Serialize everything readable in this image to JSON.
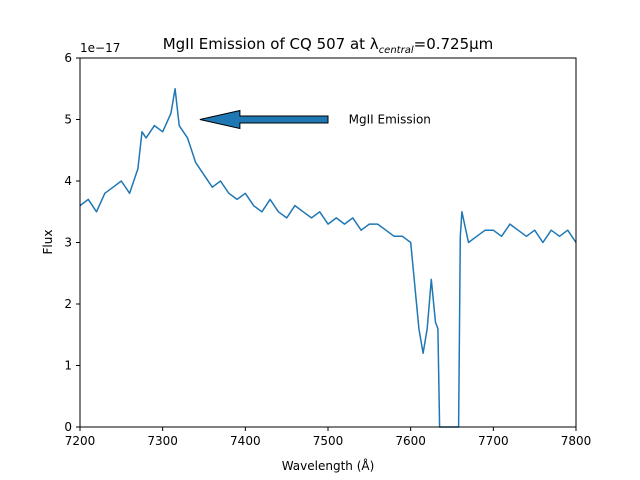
{
  "chart_data": {
    "type": "line",
    "title": "MgII Emission of CQ 507 at λ",
    "title_sub": "central",
    "title_tail": "=0.725μm",
    "xlabel": "Wavelength (Å)",
    "ylabel": "Flux",
    "y_offset_label": "1e−17",
    "xlim": [
      7200,
      7800
    ],
    "ylim": [
      0,
      6
    ],
    "xticks": [
      7200,
      7300,
      7400,
      7500,
      7600,
      7700,
      7800
    ],
    "yticks": [
      0,
      1,
      2,
      3,
      4,
      5,
      6
    ],
    "grid": false,
    "series_color": "#1f77b4",
    "annotation": {
      "text": "MgII Emission",
      "arrow_tip": {
        "x": 7345,
        "y": 5.0
      },
      "arrow_tail": {
        "x": 7500,
        "y": 5.0
      },
      "text_anchor": {
        "x": 7525,
        "y": 5.0
      }
    },
    "series": [
      {
        "x": [
          7200,
          7210,
          7220,
          7230,
          7240,
          7250,
          7260,
          7270,
          7275,
          7280,
          7290,
          7300,
          7310,
          7315,
          7320,
          7330,
          7340,
          7350,
          7360,
          7370,
          7380,
          7390,
          7400,
          7410,
          7420,
          7430,
          7440,
          7450,
          7460,
          7470,
          7480,
          7490,
          7500,
          7510,
          7520,
          7530,
          7540,
          7550,
          7560,
          7570,
          7580,
          7590,
          7600,
          7605,
          7610,
          7615,
          7620,
          7625,
          7630,
          7633,
          7635,
          7640,
          7650,
          7658,
          7660,
          7662,
          7670,
          7680,
          7690,
          7700,
          7710,
          7720,
          7730,
          7740,
          7750,
          7760,
          7770,
          7780,
          7790,
          7800
        ],
        "y": [
          3.6,
          3.7,
          3.5,
          3.8,
          3.9,
          4.0,
          3.8,
          4.2,
          4.8,
          4.7,
          4.9,
          4.8,
          5.1,
          5.5,
          4.9,
          4.7,
          4.3,
          4.1,
          3.9,
          4.0,
          3.8,
          3.7,
          3.8,
          3.6,
          3.5,
          3.7,
          3.5,
          3.4,
          3.6,
          3.5,
          3.4,
          3.5,
          3.3,
          3.4,
          3.3,
          3.4,
          3.2,
          3.3,
          3.3,
          3.2,
          3.1,
          3.1,
          3.0,
          2.3,
          1.6,
          1.2,
          1.6,
          2.4,
          1.7,
          1.6,
          0.0,
          0.0,
          0.0,
          0.0,
          3.1,
          3.5,
          3.0,
          3.1,
          3.2,
          3.2,
          3.1,
          3.3,
          3.2,
          3.1,
          3.2,
          3.0,
          3.2,
          3.1,
          3.2,
          3.0
        ]
      }
    ]
  }
}
